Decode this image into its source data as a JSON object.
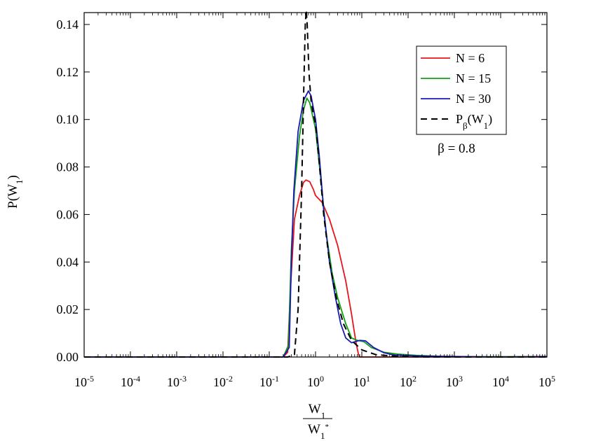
{
  "chart_data": {
    "type": "line",
    "title": "",
    "xlabel": {
      "num": "W",
      "num_sub": "1",
      "den": "W",
      "den_sub": "1",
      "den_sup": "*"
    },
    "ylabel": {
      "main": "P(W",
      "sub": "1",
      "close": ")"
    },
    "x_scale": "log",
    "xlim": [
      1e-05,
      100000
    ],
    "ylim": [
      0,
      0.145
    ],
    "grid": false,
    "x_ticks": [
      {
        "base": "10",
        "exp": "-5"
      },
      {
        "base": "10",
        "exp": "-4"
      },
      {
        "base": "10",
        "exp": "-3"
      },
      {
        "base": "10",
        "exp": "-2"
      },
      {
        "base": "10",
        "exp": "-1"
      },
      {
        "base": "10",
        "exp": "0"
      },
      {
        "base": "10",
        "exp": "1"
      },
      {
        "base": "10",
        "exp": "2"
      },
      {
        "base": "10",
        "exp": "3"
      },
      {
        "base": "10",
        "exp": "4"
      },
      {
        "base": "10",
        "exp": "5"
      }
    ],
    "y_ticks": [
      "0.00",
      "0.02",
      "0.04",
      "0.06",
      "0.08",
      "0.10",
      "0.12",
      "0.14"
    ],
    "legend_position": "top-right",
    "annotation": "β = 0.8",
    "series": [
      {
        "name": "N = 6",
        "color": "#e8141b",
        "dash": "solid",
        "points": [
          [
            1e-05,
            0
          ],
          [
            0.1,
            0
          ],
          [
            0.2,
            0
          ],
          [
            0.25,
            0.002
          ],
          [
            0.29,
            0.03
          ],
          [
            0.35,
            0.058
          ],
          [
            0.45,
            0.068
          ],
          [
            0.55,
            0.0735
          ],
          [
            0.62,
            0.0745
          ],
          [
            0.75,
            0.0738
          ],
          [
            0.9,
            0.0705
          ],
          [
            1.0,
            0.068
          ],
          [
            1.4,
            0.065
          ],
          [
            2.0,
            0.058
          ],
          [
            3.0,
            0.047
          ],
          [
            4.5,
            0.032
          ],
          [
            6.0,
            0.018
          ],
          [
            7.5,
            0.006
          ],
          [
            8.5,
            0.001
          ],
          [
            9.0,
            0
          ],
          [
            100,
            0
          ],
          [
            100000,
            0
          ]
        ]
      },
      {
        "name": "N = 15",
        "color": "#12a012",
        "dash": "solid",
        "points": [
          [
            1e-05,
            0
          ],
          [
            0.1,
            0
          ],
          [
            0.2,
            0
          ],
          [
            0.26,
            0.005
          ],
          [
            0.3,
            0.045
          ],
          [
            0.35,
            0.07
          ],
          [
            0.45,
            0.093
          ],
          [
            0.55,
            0.104
          ],
          [
            0.65,
            0.109
          ],
          [
            0.75,
            0.107
          ],
          [
            0.9,
            0.1
          ],
          [
            1.0,
            0.096
          ],
          [
            1.3,
            0.075
          ],
          [
            1.7,
            0.052
          ],
          [
            2.3,
            0.035
          ],
          [
            3.0,
            0.025
          ],
          [
            4.5,
            0.014
          ],
          [
            6.0,
            0.008
          ],
          [
            8.0,
            0.007
          ],
          [
            11,
            0.0065
          ],
          [
            16,
            0.004
          ],
          [
            30,
            0.002
          ],
          [
            60,
            0.0012
          ],
          [
            150,
            0.0007
          ],
          [
            500,
            0.0003
          ],
          [
            2000,
            0.0001
          ],
          [
            100000,
            0.0002
          ]
        ]
      },
      {
        "name": "N = 30",
        "color": "#1a1ab4",
        "dash": "solid",
        "points": [
          [
            1e-05,
            0
          ],
          [
            0.1,
            0
          ],
          [
            0.2,
            0
          ],
          [
            0.27,
            0.004
          ],
          [
            0.3,
            0.04
          ],
          [
            0.34,
            0.07
          ],
          [
            0.42,
            0.095
          ],
          [
            0.55,
            0.108
          ],
          [
            0.7,
            0.112
          ],
          [
            0.8,
            0.11
          ],
          [
            1.0,
            0.1
          ],
          [
            1.2,
            0.085
          ],
          [
            1.5,
            0.062
          ],
          [
            2.0,
            0.04
          ],
          [
            2.7,
            0.025
          ],
          [
            3.5,
            0.014
          ],
          [
            4.5,
            0.008
          ],
          [
            6.0,
            0.006
          ],
          [
            9.0,
            0.007
          ],
          [
            12,
            0.0068
          ],
          [
            18,
            0.004
          ],
          [
            30,
            0.0018
          ],
          [
            50,
            0.0008
          ],
          [
            100,
            0.0006
          ],
          [
            200,
            0.0004
          ],
          [
            1000,
            0.0002
          ],
          [
            10000,
            0
          ],
          [
            100000,
            0.0002
          ]
        ]
      },
      {
        "name": "P",
        "legend_parts": {
          "main": "P",
          "sub": "β",
          "arg_open": "(W",
          "arg_sub": "1",
          "arg_close": ")"
        },
        "color": "#000000",
        "dash": "dashed",
        "points": [
          [
            1e-05,
            0
          ],
          [
            0.1,
            0
          ],
          [
            0.25,
            0
          ],
          [
            0.35,
            0.001
          ],
          [
            0.42,
            0.02
          ],
          [
            0.5,
            0.07
          ],
          [
            0.56,
            0.115
          ],
          [
            0.6,
            0.14
          ],
          [
            0.63,
            0.146
          ],
          [
            0.66,
            0.14
          ],
          [
            0.72,
            0.12
          ],
          [
            0.8,
            0.108
          ],
          [
            0.9,
            0.102
          ],
          [
            1.0,
            0.098
          ],
          [
            1.2,
            0.082
          ],
          [
            1.5,
            0.06
          ],
          [
            2.0,
            0.04
          ],
          [
            2.8,
            0.025
          ],
          [
            4.0,
            0.014
          ],
          [
            6.0,
            0.007
          ],
          [
            10,
            0.003
          ],
          [
            20,
            0.001
          ],
          [
            60,
            0.0002
          ],
          [
            300,
            0
          ],
          [
            100000,
            0
          ]
        ]
      }
    ]
  }
}
